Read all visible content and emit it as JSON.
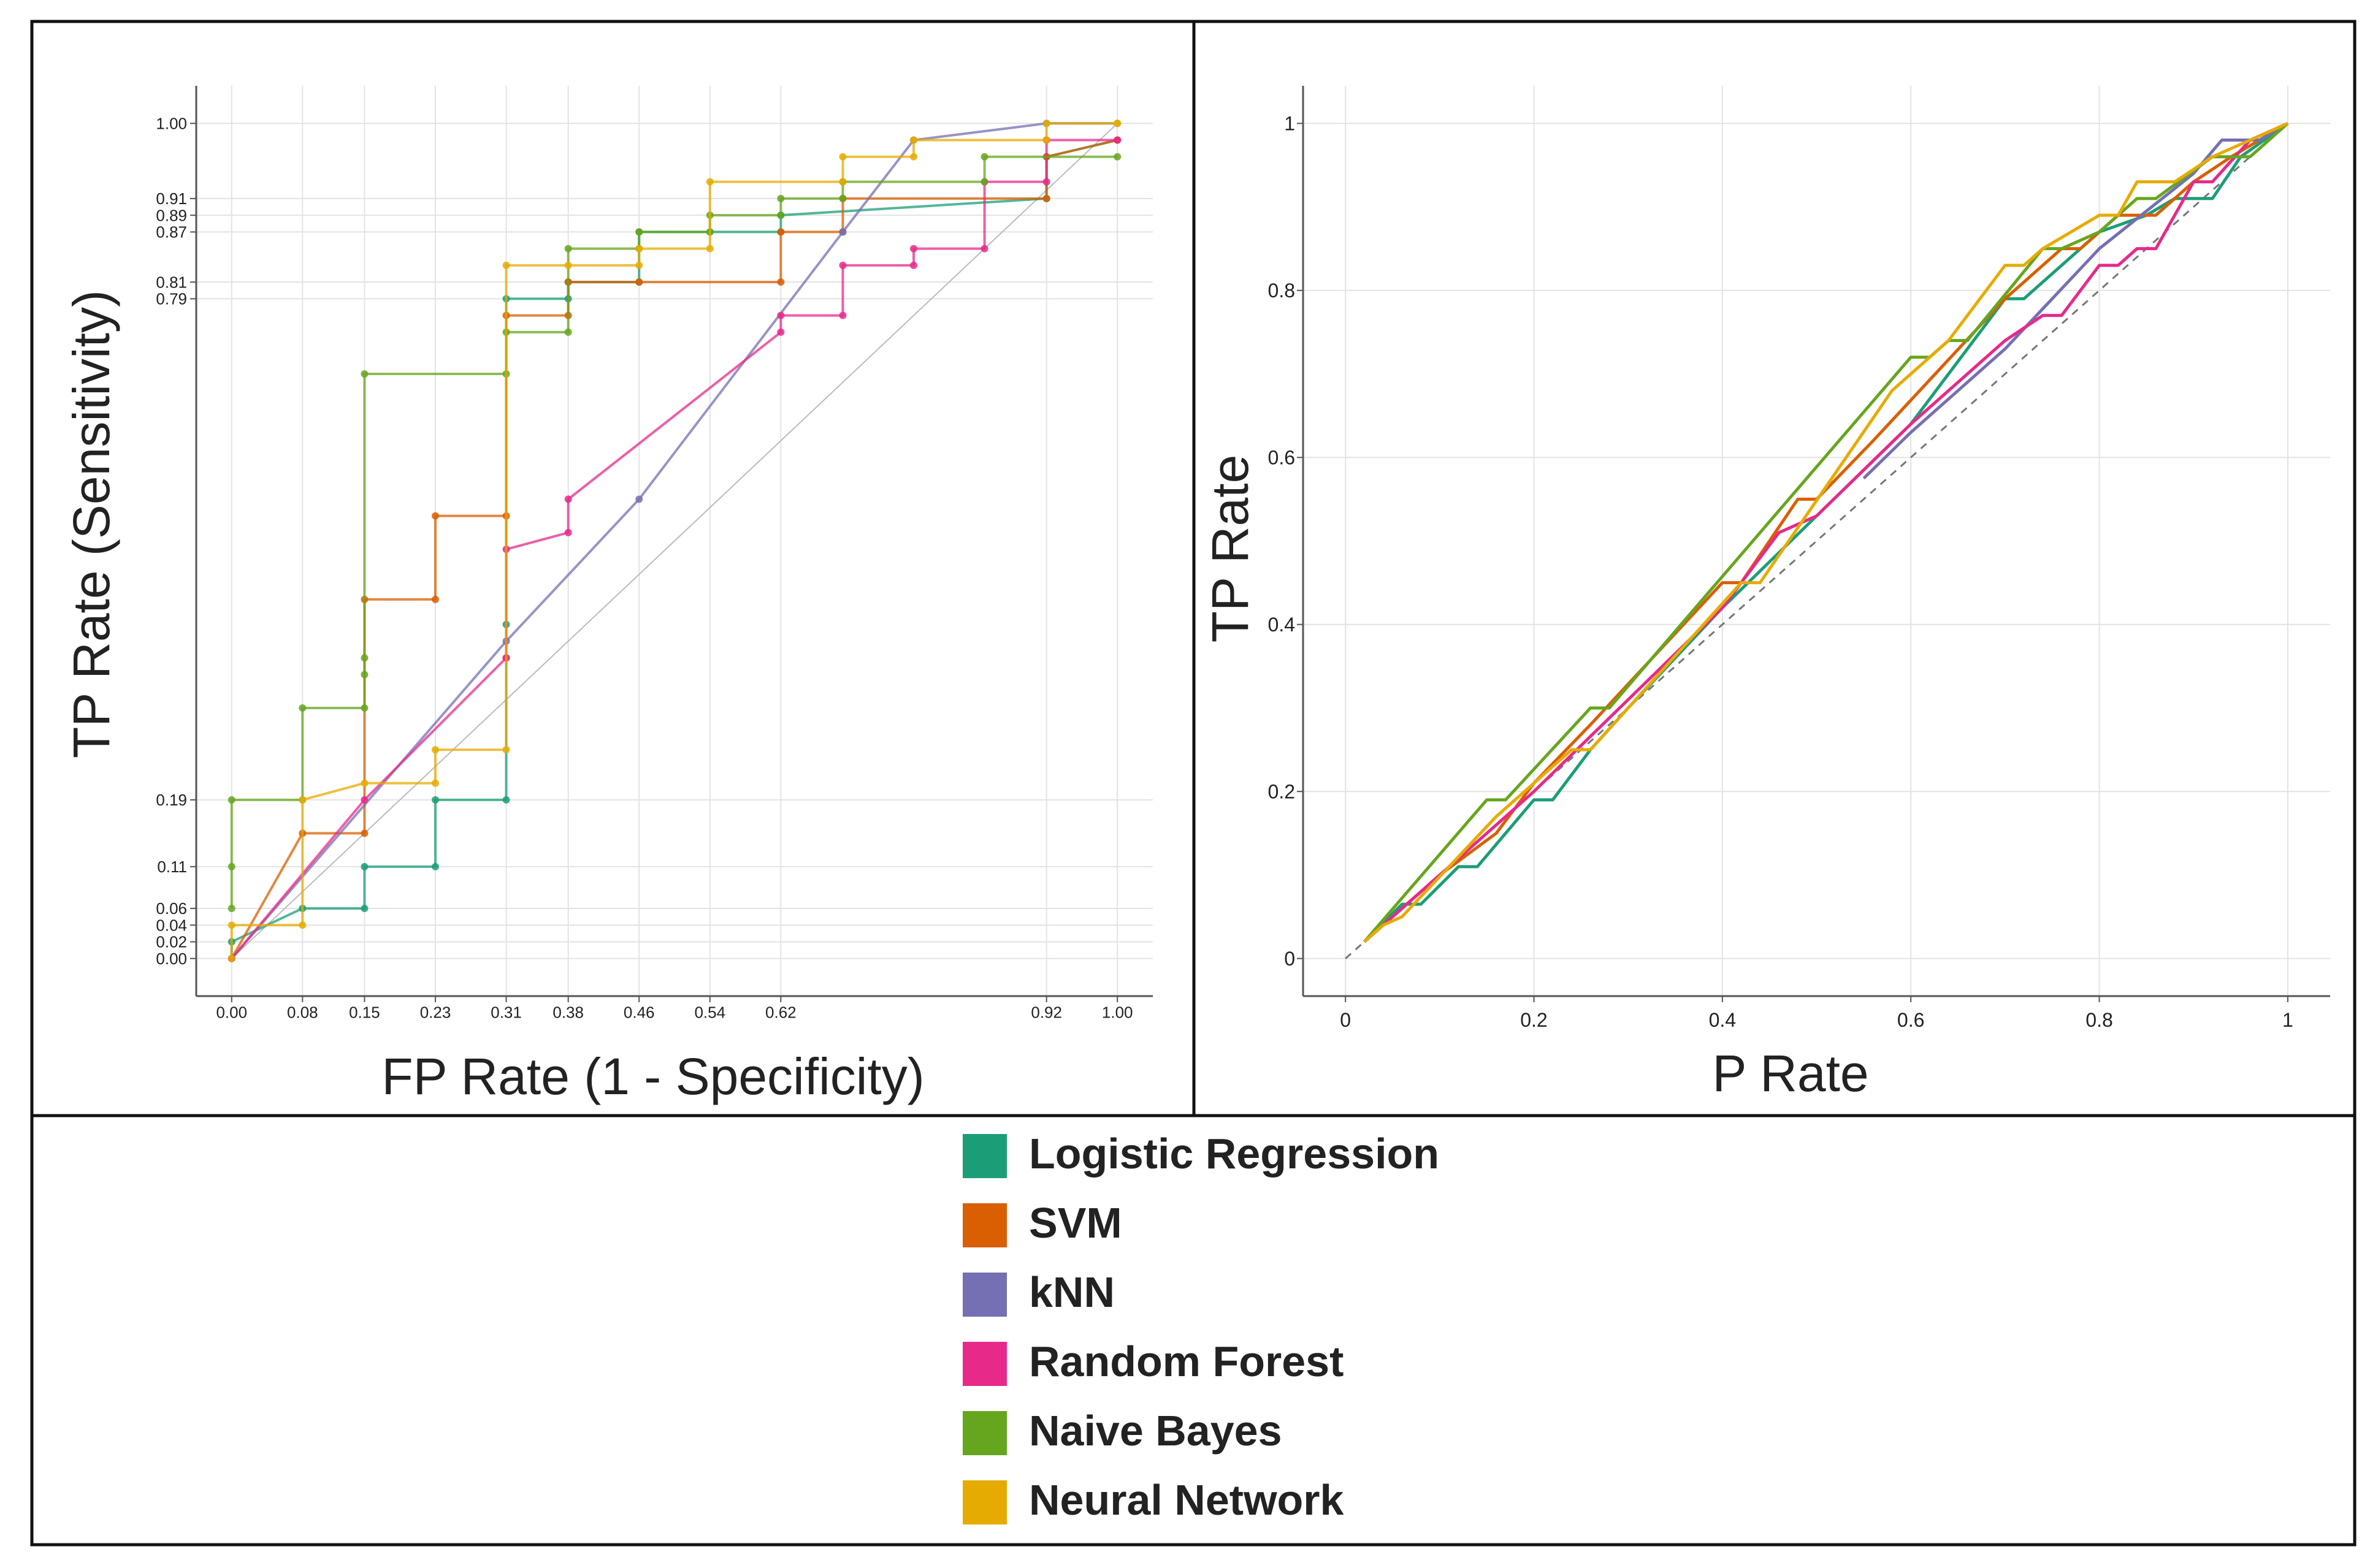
{
  "colors": {
    "logistic_regression": "#1b9e77",
    "svm": "#d95f02",
    "knn": "#7570b3",
    "random_forest": "#e7298a",
    "naive_bayes": "#66a61e",
    "neural_network": "#e6ab02",
    "grid": "#e3e3e3",
    "diagonal": "#bbbbbb",
    "frame": "#111111"
  },
  "legend": {
    "items": [
      {
        "label": "Logistic Regression",
        "color": "#1b9e77"
      },
      {
        "label": "SVM",
        "color": "#d95f02"
      },
      {
        "label": "kNN",
        "color": "#7570b3"
      },
      {
        "label": "Random Forest",
        "color": "#e7298a"
      },
      {
        "label": "Naive Bayes",
        "color": "#66a61e"
      },
      {
        "label": "Neural Network",
        "color": "#e6ab02"
      }
    ]
  },
  "chart_data": [
    {
      "type": "line",
      "title": "",
      "xlabel": "FP Rate (1 - Specificity)",
      "ylabel": "TP Rate (Sensitivity)",
      "xlim": [
        -0.04,
        1.04
      ],
      "ylim": [
        -0.045,
        1.045
      ],
      "grid": true,
      "diagonal": true,
      "show_markers": true,
      "x_ticks": [
        0.0,
        0.08,
        0.15,
        0.23,
        0.31,
        0.38,
        0.46,
        0.54,
        0.62,
        0.92,
        1.0
      ],
      "x_tick_labels": [
        "0.00",
        "0.08",
        "0.15",
        "0.23",
        "0.31",
        "0.38",
        "0.46",
        "0.54",
        "0.62",
        "0.92",
        "1.00"
      ],
      "y_ticks": [
        0.0,
        0.02,
        0.04,
        0.06,
        0.11,
        0.19,
        0.79,
        0.81,
        0.87,
        0.89,
        0.91,
        1.0
      ],
      "y_tick_labels": [
        "0.00",
        "0.02",
        "0.04",
        "0.06",
        "0.11",
        "0.19",
        "0.79",
        "0.81",
        "0.87",
        "0.89",
        "0.91",
        "1.00"
      ],
      "series": [
        {
          "name": "Logistic Regression",
          "x": [
            0.0,
            0.0,
            0.08,
            0.15,
            0.15,
            0.23,
            0.23,
            0.31,
            0.31,
            0.31,
            0.38,
            0.38,
            0.46,
            0.46,
            0.54,
            0.62,
            0.62,
            0.92,
            0.92,
            1.0
          ],
          "y": [
            0.0,
            0.02,
            0.06,
            0.06,
            0.11,
            0.11,
            0.19,
            0.19,
            0.4,
            0.79,
            0.79,
            0.81,
            0.81,
            0.87,
            0.87,
            0.87,
            0.89,
            0.91,
            0.96,
            0.98
          ]
        },
        {
          "name": "SVM",
          "x": [
            0.0,
            0.08,
            0.15,
            0.15,
            0.23,
            0.23,
            0.31,
            0.31,
            0.31,
            0.38,
            0.38,
            0.46,
            0.62,
            0.62,
            0.69,
            0.69,
            0.92,
            0.92,
            1.0
          ],
          "y": [
            0.0,
            0.15,
            0.15,
            0.43,
            0.43,
            0.53,
            0.53,
            0.36,
            0.77,
            0.77,
            0.81,
            0.81,
            0.81,
            0.87,
            0.87,
            0.91,
            0.91,
            0.96,
            0.98
          ]
        },
        {
          "name": "kNN",
          "x": [
            0.0,
            0.31,
            0.46,
            0.69,
            0.77,
            0.92,
            1.0
          ],
          "y": [
            0.0,
            0.38,
            0.55,
            0.87,
            0.98,
            1.0,
            1.0
          ]
        },
        {
          "name": "Random Forest",
          "x": [
            0.0,
            0.15,
            0.31,
            0.31,
            0.38,
            0.38,
            0.62,
            0.62,
            0.69,
            0.69,
            0.77,
            0.77,
            0.85,
            0.85,
            0.92,
            0.92,
            1.0
          ],
          "y": [
            0.0,
            0.19,
            0.36,
            0.49,
            0.51,
            0.55,
            0.75,
            0.77,
            0.77,
            0.83,
            0.83,
            0.85,
            0.85,
            0.93,
            0.93,
            0.98,
            0.98
          ]
        },
        {
          "name": "Naive Bayes",
          "x": [
            0.0,
            0.0,
            0.0,
            0.08,
            0.08,
            0.15,
            0.15,
            0.15,
            0.15,
            0.31,
            0.31,
            0.38,
            0.38,
            0.46,
            0.46,
            0.54,
            0.54,
            0.62,
            0.62,
            0.69,
            0.69,
            0.85,
            0.85,
            1.0
          ],
          "y": [
            0.06,
            0.11,
            0.19,
            0.19,
            0.3,
            0.3,
            0.34,
            0.36,
            0.7,
            0.7,
            0.75,
            0.75,
            0.85,
            0.85,
            0.87,
            0.87,
            0.89,
            0.89,
            0.91,
            0.91,
            0.93,
            0.93,
            0.96,
            0.96
          ]
        },
        {
          "name": "Neural Network",
          "x": [
            0.0,
            0.0,
            0.08,
            0.08,
            0.15,
            0.23,
            0.23,
            0.31,
            0.31,
            0.38,
            0.46,
            0.46,
            0.54,
            0.54,
            0.69,
            0.69,
            0.77,
            0.77,
            0.92,
            0.92,
            1.0,
            1.0
          ],
          "y": [
            0.0,
            0.04,
            0.04,
            0.19,
            0.21,
            0.21,
            0.25,
            0.25,
            0.83,
            0.83,
            0.83,
            0.85,
            0.85,
            0.93,
            0.93,
            0.96,
            0.96,
            0.98,
            0.98,
            1.0,
            1.0,
            1.0
          ]
        }
      ]
    },
    {
      "type": "line",
      "title": "",
      "xlabel": "P Rate",
      "ylabel": "TP Rate",
      "xlim": [
        -0.045,
        1.045
      ],
      "ylim": [
        -0.045,
        1.045
      ],
      "grid": true,
      "diagonal": true,
      "show_markers": false,
      "x_ticks": [
        0,
        0.2,
        0.4,
        0.6,
        0.8,
        1
      ],
      "x_tick_labels": [
        "0",
        "0.2",
        "0.4",
        "0.6",
        "0.8",
        "1"
      ],
      "y_ticks": [
        0,
        0.2,
        0.4,
        0.6,
        0.8,
        1
      ],
      "y_tick_labels": [
        "0",
        "0.2",
        "0.4",
        "0.6",
        "0.8",
        "1"
      ],
      "series": [
        {
          "name": "Logistic Regression",
          "x": [
            0.02,
            0.06,
            0.08,
            0.12,
            0.14,
            0.2,
            0.22,
            0.26,
            0.3,
            0.4,
            0.5,
            0.6,
            0.7,
            0.72,
            0.74,
            0.76,
            0.8,
            0.85,
            0.88,
            0.9,
            0.92,
            0.95,
            1.0
          ],
          "y": [
            0.02,
            0.065,
            0.065,
            0.11,
            0.11,
            0.19,
            0.19,
            0.25,
            0.3,
            0.42,
            0.53,
            0.64,
            0.79,
            0.79,
            0.81,
            0.83,
            0.87,
            0.89,
            0.91,
            0.91,
            0.91,
            0.96,
            1.0
          ]
        },
        {
          "name": "SVM",
          "x": [
            0.02,
            0.1,
            0.16,
            0.2,
            0.26,
            0.4,
            0.42,
            0.48,
            0.5,
            0.56,
            0.7,
            0.76,
            0.78,
            0.82,
            0.86,
            0.9,
            0.94,
            1.0
          ],
          "y": [
            0.02,
            0.1,
            0.15,
            0.21,
            0.28,
            0.45,
            0.45,
            0.55,
            0.55,
            0.62,
            0.79,
            0.85,
            0.85,
            0.89,
            0.89,
            0.93,
            0.96,
            1.0
          ]
        },
        {
          "name": "kNN",
          "x": [
            0.55,
            0.6,
            0.7,
            0.8,
            0.9,
            0.93,
            0.97,
            1.0
          ],
          "y": [
            0.575,
            0.63,
            0.73,
            0.85,
            0.94,
            0.98,
            0.98,
            1.0
          ]
        },
        {
          "name": "Random Forest",
          "x": [
            0.02,
            0.1,
            0.2,
            0.3,
            0.4,
            0.46,
            0.5,
            0.6,
            0.7,
            0.74,
            0.76,
            0.8,
            0.82,
            0.84,
            0.86,
            0.9,
            0.92,
            0.96,
            1.0
          ],
          "y": [
            0.02,
            0.1,
            0.2,
            0.31,
            0.42,
            0.51,
            0.53,
            0.64,
            0.74,
            0.77,
            0.77,
            0.83,
            0.83,
            0.85,
            0.85,
            0.93,
            0.93,
            0.98,
            1.0
          ]
        },
        {
          "name": "Naive Bayes",
          "x": [
            0.02,
            0.15,
            0.17,
            0.26,
            0.28,
            0.6,
            0.62,
            0.64,
            0.66,
            0.74,
            0.76,
            0.8,
            0.84,
            0.86,
            0.92,
            0.96,
            1.0
          ],
          "y": [
            0.02,
            0.19,
            0.19,
            0.3,
            0.3,
            0.72,
            0.72,
            0.74,
            0.74,
            0.85,
            0.85,
            0.87,
            0.91,
            0.91,
            0.96,
            0.96,
            1.0
          ]
        },
        {
          "name": "Neural Network",
          "x": [
            0.02,
            0.04,
            0.06,
            0.16,
            0.2,
            0.24,
            0.26,
            0.42,
            0.44,
            0.58,
            0.64,
            0.7,
            0.72,
            0.74,
            0.8,
            0.82,
            0.84,
            0.88,
            0.92,
            0.96,
            1.0
          ],
          "y": [
            0.02,
            0.04,
            0.05,
            0.17,
            0.21,
            0.25,
            0.25,
            0.45,
            0.45,
            0.68,
            0.74,
            0.83,
            0.83,
            0.85,
            0.89,
            0.89,
            0.93,
            0.93,
            0.96,
            0.98,
            1.0
          ]
        }
      ]
    }
  ]
}
